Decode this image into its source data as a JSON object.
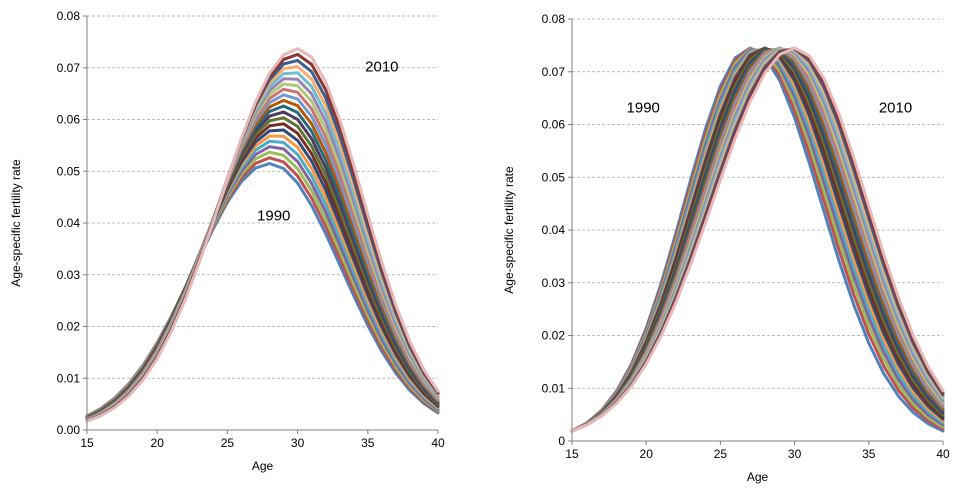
{
  "chart_data": [
    {
      "type": "line",
      "xlabel": "Age",
      "ylabel": "Age-specific fertility rate",
      "xlim": [
        15,
        40
      ],
      "ylim": [
        0,
        0.08
      ],
      "xticks": [
        "15",
        "20",
        "25",
        "30",
        "35",
        "40"
      ],
      "yticks": [
        "0.00",
        "0.01",
        "0.02",
        "0.03",
        "0.04",
        "0.05",
        "0.06",
        "0.07",
        "0.08"
      ],
      "grid": "horizontal dashed",
      "annotations": [
        {
          "text": "2010",
          "x": 36,
          "y": 0.0693
        },
        {
          "text": "1990",
          "x": 28.3,
          "y": 0.0405
        }
      ],
      "series_count": 21,
      "model": "fixed-mean curves, peak height rising from 1990 to 2010",
      "first_series": {
        "label": "1990",
        "peak_age": 28,
        "peak_value": 0.0515,
        "value_at_15": 0.0027,
        "value_at_40": 0.0033
      },
      "last_series": {
        "label": "2010",
        "peak_age": 30,
        "peak_value": 0.0737,
        "value_at_15": 0.0017,
        "value_at_40": 0.0075
      },
      "palette": [
        "#4f81bd",
        "#c0504d",
        "#9bbb59",
        "#8064a2",
        "#4bacc6",
        "#f79646",
        "#2c4d75",
        "#772c2a",
        "#5f7530",
        "#4d3b62",
        "#276a7c",
        "#b65708",
        "#729acA",
        "#cd7371",
        "#afc97a",
        "#9983b5",
        "#6fbdd1",
        "#f9ab6b",
        "#3a5f8e",
        "#8b3734",
        "#e6b9b8"
      ]
    },
    {
      "type": "line",
      "xlabel": "Age",
      "ylabel": "Age-specific fertility rate",
      "xlim": [
        15,
        40
      ],
      "ylim": [
        0,
        0.08
      ],
      "xticks": [
        "15",
        "20",
        "25",
        "30",
        "35",
        "40"
      ],
      "yticks": [
        "0",
        "0.01",
        "0.02",
        "0.03",
        "0.04",
        "0.05",
        "0.06",
        "0.07",
        "0.08"
      ],
      "grid": "horizontal dashed",
      "annotations": [
        {
          "text": "1990",
          "x": 19.8,
          "y": 0.0623
        },
        {
          "text": "2010",
          "x": 36.8,
          "y": 0.0623
        }
      ],
      "series_count": 21,
      "model": "shifting-mean curves, same peak height, peak age moving right",
      "first_series": {
        "label": "1990",
        "peak_age": 27,
        "peak_value": 0.0745,
        "value_at_15": 0.0019,
        "value_at_40": 0.0019
      },
      "last_series": {
        "label": "2010",
        "peak_age": 30,
        "peak_value": 0.0745,
        "value_at_15": 0.0019,
        "value_at_40": 0.0095
      },
      "palette": [
        "#4f81bd",
        "#c0504d",
        "#9bbb59",
        "#8064a2",
        "#4bacc6",
        "#f79646",
        "#2c4d75",
        "#772c2a",
        "#5f7530",
        "#4d3b62",
        "#276a7c",
        "#b65708",
        "#729aca",
        "#cd7371",
        "#afc97a",
        "#9983b5",
        "#6fbdd1",
        "#f9ab6b",
        "#3a5f8e",
        "#8b3734",
        "#e6b9b8"
      ]
    }
  ]
}
